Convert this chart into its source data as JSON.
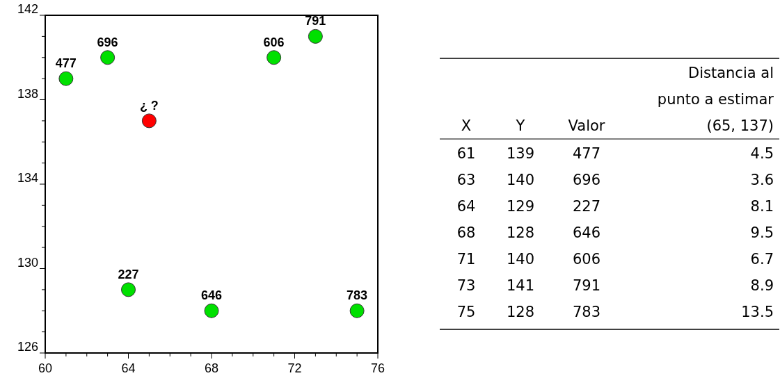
{
  "chart_data": [
    {
      "type": "scatter",
      "marker": "circle",
      "xlim": [
        60,
        76
      ],
      "ylim": [
        126,
        142
      ],
      "xticks": [
        60,
        {
          "value": 61,
          "label": null
        },
        {
          "value": 62,
          "label": null
        },
        {
          "value": 63,
          "label": null
        },
        64,
        {
          "value": 65,
          "label": null
        },
        {
          "value": 66,
          "label": null
        },
        {
          "value": 67,
          "label": null
        },
        68,
        {
          "value": 69,
          "label": null
        },
        {
          "value": 70,
          "label": null
        },
        {
          "value": 71,
          "label": null
        },
        72,
        {
          "value": 73,
          "label": null
        },
        {
          "value": 74,
          "label": null
        },
        {
          "value": 75,
          "label": null
        },
        76
      ],
      "yticks": [
        126,
        {
          "value": 127,
          "label": null
        },
        {
          "value": 128,
          "label": null
        },
        {
          "value": 129,
          "label": null
        },
        130,
        {
          "value": 131,
          "label": null
        },
        {
          "value": 132,
          "label": null
        },
        {
          "value": 133,
          "label": null
        },
        134,
        {
          "value": 135,
          "label": null
        },
        {
          "value": 136,
          "label": null
        },
        {
          "value": 137,
          "label": null
        },
        138,
        {
          "value": 139,
          "label": null
        },
        {
          "value": 140,
          "label": null
        },
        {
          "value": 141,
          "label": null
        },
        142
      ],
      "series": [
        {
          "color": "#00e000",
          "x": [
            61,
            63,
            64,
            68,
            71,
            73,
            75
          ],
          "values": [
            139,
            140,
            129,
            128,
            140,
            141,
            128
          ]
        },
        {
          "color": "#ff0000",
          "x": [
            65
          ],
          "values": [
            137
          ]
        }
      ],
      "annotations": [
        {
          "text": "477",
          "x": 61,
          "y": 139
        },
        {
          "text": "696",
          "x": 63,
          "y": 140
        },
        {
          "text": "227",
          "x": 64,
          "y": 129
        },
        {
          "text": "646",
          "x": 68,
          "y": 128
        },
        {
          "text": "606",
          "x": 71,
          "y": 140
        },
        {
          "text": "791",
          "x": 73,
          "y": 141
        },
        {
          "text": "783",
          "x": 75,
          "y": 128
        },
        {
          "text": "¿ ?",
          "x": 65,
          "y": 137
        }
      ]
    },
    {
      "type": "other",
      "categories": [
        "X",
        "Y",
        "Valor",
        "Distancia al punto a estimar (65, 137)"
      ],
      "annotations": [
        "61",
        "139",
        "477",
        "4.5",
        "63",
        "140",
        "696",
        "3.6",
        "64",
        "129",
        "227",
        "8.1",
        "68",
        "128",
        "646",
        "9.5",
        "71",
        "140",
        "606",
        "6.7",
        "73",
        "141",
        "791",
        "8.9",
        "75",
        "128",
        "783",
        "13.5"
      ]
    }
  ]
}
